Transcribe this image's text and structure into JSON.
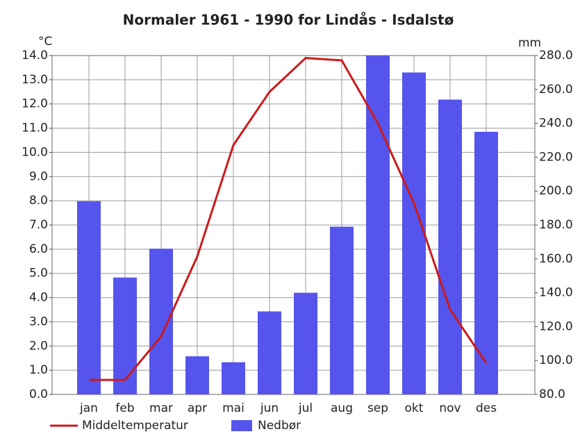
{
  "chart_data": {
    "type": "combo",
    "title": "Normaler 1961 - 1990 for Lindås - Isdalstø",
    "y_label": "°C",
    "y2_label": "mm",
    "categories": [
      "jan",
      "feb",
      "mar",
      "apr",
      "mai",
      "jun",
      "jul",
      "aug",
      "sep",
      "okt",
      "nov",
      "des"
    ],
    "series": [
      {
        "name": "Middeltemperatur",
        "type": "line",
        "color": "#cc1a1a",
        "values": [
          0.6,
          0.6,
          2.4,
          5.7,
          10.3,
          12.5,
          13.9,
          13.8,
          11.2,
          7.9,
          3.5,
          1.3
        ]
      },
      {
        "name": "Nedbør",
        "type": "bar",
        "axis": "y2",
        "color": "#5555ee",
        "values": [
          194,
          149,
          166,
          102.5,
          99,
          129,
          140,
          179,
          280,
          270,
          254,
          235
        ]
      }
    ],
    "ylim": [
      0,
      14
    ],
    "yticks": [
      {
        "value": 0,
        "label": "0.0"
      },
      {
        "value": 1,
        "label": "1.0"
      },
      {
        "value": 2,
        "label": "2.0"
      },
      {
        "value": 3,
        "label": "3.0"
      },
      {
        "value": 4,
        "label": "4.0"
      },
      {
        "value": 5,
        "label": "5.0"
      },
      {
        "value": 6,
        "label": "6.0"
      },
      {
        "value": 7,
        "label": "7.0"
      },
      {
        "value": 8,
        "label": "8.0"
      },
      {
        "value": 9,
        "label": "9.0"
      },
      {
        "value": 10,
        "label": "10.0"
      },
      {
        "value": 11,
        "label": "11.0"
      },
      {
        "value": 12,
        "label": "12.0"
      },
      {
        "value": 13,
        "label": "13.0"
      },
      {
        "value": 14,
        "label": "14.0"
      }
    ],
    "y2lim": [
      80,
      280
    ],
    "y2ticks": [
      {
        "value": 80,
        "label": "80.0"
      },
      {
        "value": 100,
        "label": "100.0"
      },
      {
        "value": 120,
        "label": "120.0"
      },
      {
        "value": 140,
        "label": "140.0"
      },
      {
        "value": 160,
        "label": "160.0"
      },
      {
        "value": 180,
        "label": "180.0"
      },
      {
        "value": 200,
        "label": "200.0"
      },
      {
        "value": 220,
        "label": "220.0"
      },
      {
        "value": 240,
        "label": "240.0"
      },
      {
        "value": 260,
        "label": "260.0"
      },
      {
        "value": 280,
        "label": "280.0"
      }
    ],
    "grid": true
  }
}
